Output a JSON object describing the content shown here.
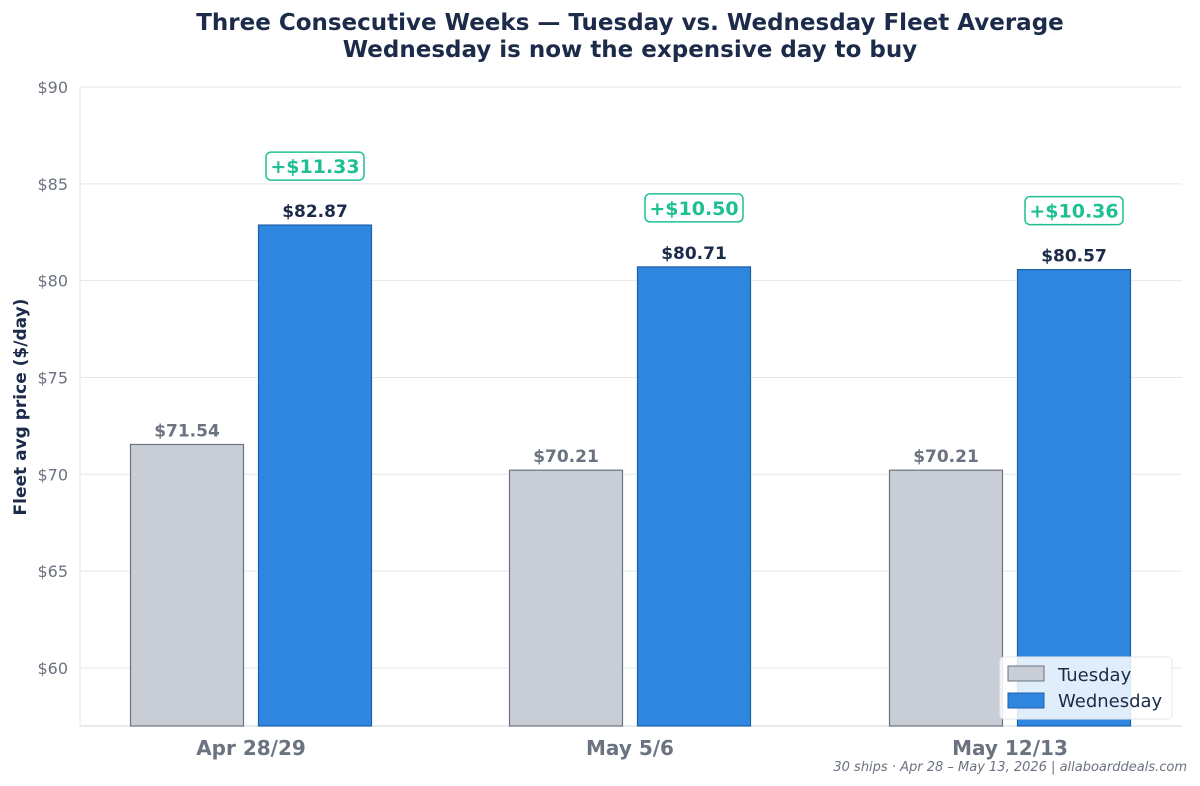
{
  "chart_data": {
    "type": "bar",
    "title": "Three Consecutive Weeks — Tuesday vs. Wednesday Fleet Average",
    "subtitle": "Wednesday is now the expensive day to buy",
    "ylabel": "Fleet avg price ($/day)",
    "xlabel": "",
    "ylim": [
      57,
      90
    ],
    "yticks": [
      60,
      65,
      70,
      75,
      80,
      85,
      90
    ],
    "ytick_labels": [
      "$60",
      "$65",
      "$70",
      "$75",
      "$80",
      "$85",
      "$90"
    ],
    "grid": "horizontal",
    "categories": [
      "Apr 28/29",
      "May 5/6",
      "May 12/13"
    ],
    "series": [
      {
        "name": "Tuesday",
        "values": [
          71.54,
          70.21,
          70.21
        ],
        "labels": [
          "$71.54",
          "$70.21",
          "$70.21"
        ],
        "color": "#c9ced6",
        "edge": "#6b7280"
      },
      {
        "name": "Wednesday",
        "values": [
          82.87,
          80.71,
          80.57
        ],
        "labels": [
          "$82.87",
          "$80.71",
          "$80.57"
        ],
        "color": "#2e86de",
        "edge": "#1f5fa8"
      }
    ],
    "differences": [
      "+$11.33",
      "+$10.50",
      "+$10.36"
    ],
    "difference_color": "#1fbf94",
    "legend_placement": "bottom-right",
    "footnote": "30 ships · Apr 28 – May 13, 2026  |  allaboarddeals.com"
  }
}
